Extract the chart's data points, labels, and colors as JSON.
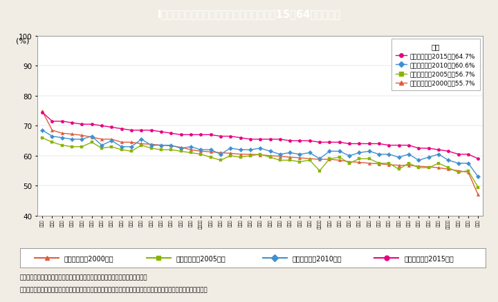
{
  "title": "I－特－３図　都道府県別　女性の就業率（15～64歳）の推移",
  "title_bg": "#3aaccf",
  "bg_color": "#f2ede4",
  "plot_bg": "#ffffff",
  "ylabel": "(%)",
  "ylim": [
    40,
    100
  ],
  "yticks": [
    40,
    50,
    60,
    70,
    80,
    90,
    100
  ],
  "footnote1": "（備考）１．総務省「国勢調査」より作成。平成２７年は抽出速報集計の数値。",
  "footnote2": "　　　　２．平成１２，１７年は就業状態不詳を含む総数から，２２，２７年は不詳を除いた総数から就業率を算出。",
  "inner_legend_title": "全国",
  "inner_legend_labels": [
    "平成２７年（2015年）64.7%",
    "平成２２年（2010年）60.6%",
    "平成１７年（2005年）56.7%",
    "平成１２年（2000年）55.7%"
  ],
  "bottom_legend_labels": [
    "平成１２年（2000年）",
    "平成１７年（2005年）",
    "平成２２年（2010年）",
    "平成２７年（2015年）"
  ],
  "colors": {
    "2000": "#e05a3a",
    "2005": "#8ab400",
    "2010": "#4090d0",
    "2015": "#e8007f"
  },
  "prefectures": [
    "福井県",
    "富山県",
    "島根県",
    "鳥取県",
    "石川県",
    "山形県",
    "高知県",
    "新潟県",
    "宮崎県",
    "佐賀県",
    "長野県",
    "岩手県",
    "秋田県",
    "岐阜県",
    "熊本県",
    "静岡県",
    "鹿児島県",
    "山梨県",
    "福岡県",
    "岡山県",
    "山口県",
    "大分県",
    "群馬県",
    "香川県",
    "東京都",
    "長崎県",
    "青森県",
    "三重県",
    "和歌山県",
    "滋賀県",
    "愛知県",
    "沖縄県",
    "広島県",
    "栃木県",
    "徳島県",
    "福島県",
    "京都府",
    "茨城県",
    "千葉県",
    "北海道",
    "宮城県",
    "神奈川県",
    "大阪府",
    "兵庫県",
    "奈良県"
  ],
  "data_2000": [
    74.8,
    68.5,
    67.5,
    67.2,
    66.8,
    66.2,
    65.5,
    65.5,
    64.5,
    64.5,
    64.0,
    63.8,
    63.5,
    63.3,
    62.8,
    62.0,
    61.5,
    61.3,
    61.0,
    60.8,
    60.5,
    60.5,
    60.3,
    60.0,
    59.8,
    59.5,
    59.3,
    59.0,
    58.8,
    58.8,
    58.5,
    58.0,
    57.8,
    57.5,
    57.3,
    57.0,
    56.8,
    56.8,
    56.5,
    56.3,
    56.0,
    55.5,
    55.0,
    54.5,
    47.0
  ],
  "data_2005": [
    66.0,
    64.5,
    63.5,
    63.0,
    63.0,
    64.5,
    62.5,
    63.0,
    62.0,
    61.5,
    63.5,
    62.5,
    62.0,
    62.0,
    61.5,
    61.0,
    60.5,
    59.5,
    58.5,
    60.0,
    59.5,
    60.0,
    60.5,
    59.5,
    58.5,
    58.5,
    58.0,
    58.5,
    55.0,
    59.0,
    59.5,
    57.5,
    59.0,
    59.0,
    57.5,
    57.5,
    55.5,
    57.5,
    56.0,
    56.0,
    57.5,
    56.0,
    54.5,
    55.0,
    49.5
  ],
  "data_2010": [
    68.5,
    66.5,
    66.0,
    65.5,
    65.5,
    66.5,
    63.5,
    65.0,
    63.0,
    63.0,
    65.5,
    63.5,
    63.5,
    63.5,
    62.5,
    63.0,
    62.0,
    62.0,
    60.5,
    62.5,
    62.0,
    62.0,
    62.5,
    61.5,
    60.5,
    61.0,
    60.5,
    61.0,
    59.0,
    61.5,
    61.5,
    60.0,
    61.0,
    61.5,
    60.5,
    60.5,
    59.5,
    60.5,
    58.5,
    59.5,
    60.5,
    58.5,
    57.5,
    57.5,
    53.0
  ],
  "data_2015": [
    74.5,
    71.5,
    71.5,
    71.0,
    70.5,
    70.5,
    70.0,
    69.5,
    69.0,
    68.5,
    68.5,
    68.5,
    68.0,
    67.5,
    67.0,
    67.0,
    67.0,
    67.0,
    66.5,
    66.5,
    66.0,
    65.5,
    65.5,
    65.5,
    65.5,
    65.0,
    65.0,
    65.0,
    64.5,
    64.5,
    64.5,
    64.0,
    64.0,
    64.0,
    64.0,
    63.5,
    63.5,
    63.5,
    62.5,
    62.5,
    62.0,
    61.5,
    60.5,
    60.5,
    59.0
  ]
}
